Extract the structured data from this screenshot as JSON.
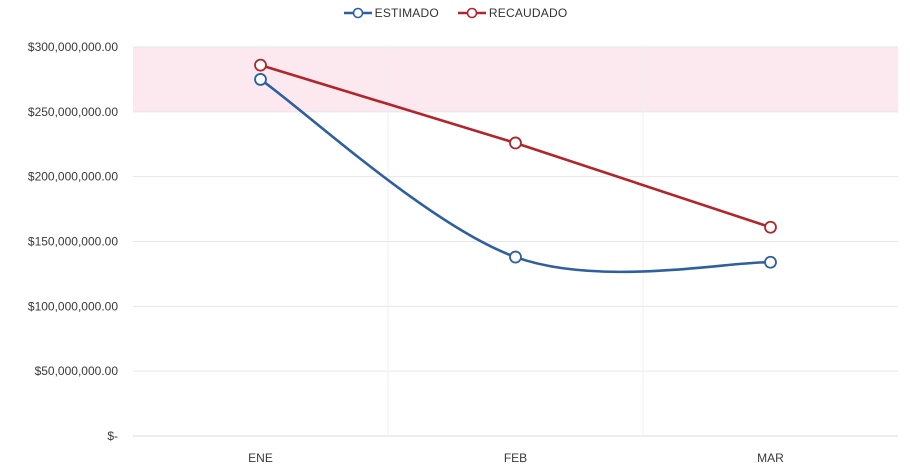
{
  "chart_data": {
    "type": "line",
    "categories": [
      "ENE",
      "FEB",
      "MAR"
    ],
    "series": [
      {
        "name": "ESTIMADO",
        "color": "#2e5f9e",
        "values": [
          275000000,
          138000000,
          134000000
        ]
      },
      {
        "name": "RECAUDADO",
        "color": "#b0262c",
        "values": [
          286000000,
          226000000,
          161000000
        ]
      }
    ],
    "y_ticks": [
      {
        "value": 0,
        "label": "$-"
      },
      {
        "value": 50000000,
        "label": "$50,000,000.00"
      },
      {
        "value": 100000000,
        "label": "$100,000,000.00"
      },
      {
        "value": 150000000,
        "label": "$150,000,000.00"
      },
      {
        "value": 200000000,
        "label": "$200,000,000.00"
      },
      {
        "value": 250000000,
        "label": "$250,000,000.00"
      },
      {
        "value": 300000000,
        "label": "$300,000,000.00"
      }
    ],
    "ylim": [
      0,
      300000000
    ],
    "title": "",
    "xlabel": "",
    "ylabel": "",
    "grid": true,
    "legend_position": "top-center",
    "smooth_lines": true
  }
}
